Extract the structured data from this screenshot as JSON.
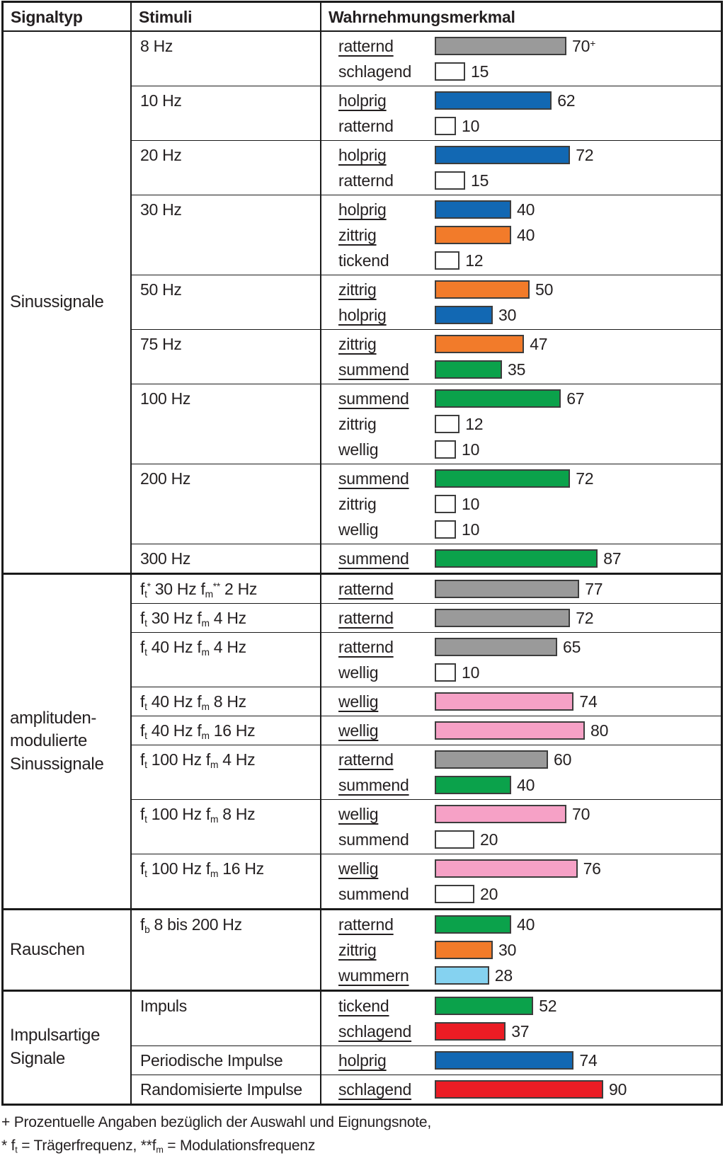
{
  "header": {
    "signaltyp": "Signaltyp",
    "stimuli": "Stimuli",
    "wahrnehmungsmerkmal": "Wahrnehmungsmerkmal"
  },
  "colors": {
    "gray": "#9a9a9a",
    "blue": "#1268b3",
    "orange": "#f27b2a",
    "green": "#0ba24b",
    "pink": "#f6a1c6",
    "lightblue": "#85d2f0",
    "red": "#eb1c24",
    "white": "#ffffff",
    "bar_border": "#3d3d3d",
    "table_line": "#1a1a1a"
  },
  "chart_data": {
    "type": "bar",
    "orientation": "horizontal",
    "title": "Wahrnehmungsmerkmal",
    "value_unit": "percent",
    "xlim": [
      0,
      100
    ],
    "legend_position": "none",
    "grid": false,
    "sections": [
      {
        "signaltyp_lines": [
          "Sinussignale"
        ],
        "rows": [
          {
            "stimulus": [
              [
                "t",
                "8 Hz"
              ]
            ],
            "bars": [
              {
                "label": "ratternd",
                "value": 70,
                "value_suffix": "+",
                "color": "gray",
                "underlined": true
              },
              {
                "label": "schlagend",
                "value": 15,
                "color": "white",
                "underlined": false
              }
            ]
          },
          {
            "stimulus": [
              [
                "t",
                "10 Hz"
              ]
            ],
            "bars": [
              {
                "label": "holprig",
                "value": 62,
                "color": "blue",
                "underlined": true
              },
              {
                "label": "ratternd",
                "value": 10,
                "color": "white",
                "underlined": false
              }
            ]
          },
          {
            "stimulus": [
              [
                "t",
                "20 Hz"
              ]
            ],
            "bars": [
              {
                "label": "holprig",
                "value": 72,
                "color": "blue",
                "underlined": true
              },
              {
                "label": "ratternd",
                "value": 15,
                "color": "white",
                "underlined": false
              }
            ]
          },
          {
            "stimulus": [
              [
                "t",
                "30 Hz"
              ]
            ],
            "bars": [
              {
                "label": "holprig",
                "value": 40,
                "color": "blue",
                "underlined": true
              },
              {
                "label": "zittrig",
                "value": 40,
                "color": "orange",
                "underlined": true
              },
              {
                "label": "tickend",
                "value": 12,
                "color": "white",
                "underlined": false
              }
            ]
          },
          {
            "stimulus": [
              [
                "t",
                "50 Hz"
              ]
            ],
            "bars": [
              {
                "label": "zittrig",
                "value": 50,
                "color": "orange",
                "underlined": true
              },
              {
                "label": "holprig",
                "value": 30,
                "color": "blue",
                "underlined": true
              }
            ]
          },
          {
            "stimulus": [
              [
                "t",
                "75 Hz"
              ]
            ],
            "bars": [
              {
                "label": "zittrig",
                "value": 47,
                "color": "orange",
                "underlined": true
              },
              {
                "label": "summend",
                "value": 35,
                "color": "green",
                "underlined": true
              }
            ]
          },
          {
            "stimulus": [
              [
                "t",
                "100 Hz"
              ]
            ],
            "bars": [
              {
                "label": "summend",
                "value": 67,
                "color": "green",
                "underlined": true
              },
              {
                "label": "zittrig",
                "value": 12,
                "color": "white",
                "underlined": false
              },
              {
                "label": "wellig",
                "value": 10,
                "color": "white",
                "underlined": false
              }
            ]
          },
          {
            "stimulus": [
              [
                "t",
                "200 Hz"
              ]
            ],
            "bars": [
              {
                "label": "summend",
                "value": 72,
                "color": "green",
                "underlined": true
              },
              {
                "label": "zittrig",
                "value": 10,
                "color": "white",
                "underlined": false
              },
              {
                "label": "wellig",
                "value": 10,
                "color": "white",
                "underlined": false
              }
            ]
          },
          {
            "stimulus": [
              [
                "t",
                "300 Hz"
              ]
            ],
            "bars": [
              {
                "label": "summend",
                "value": 87,
                "color": "green",
                "underlined": true
              }
            ]
          }
        ]
      },
      {
        "signaltyp_lines": [
          "amplituden-",
          "modulierte",
          "Sinussignale"
        ],
        "rows": [
          {
            "stimulus": [
              [
                "t",
                "f"
              ],
              [
                "sub",
                "t"
              ],
              [
                "sup",
                "*"
              ],
              [
                "t",
                " 30 Hz f"
              ],
              [
                "sub",
                "m"
              ],
              [
                "sup",
                "**"
              ],
              [
                "t",
                " 2 Hz"
              ]
            ],
            "bars": [
              {
                "label": "ratternd",
                "value": 77,
                "color": "gray",
                "underlined": true
              }
            ]
          },
          {
            "stimulus": [
              [
                "t",
                "f"
              ],
              [
                "sub",
                "t"
              ],
              [
                "t",
                " 30 Hz f"
              ],
              [
                "sub",
                "m"
              ],
              [
                "t",
                " 4 Hz"
              ]
            ],
            "bars": [
              {
                "label": "ratternd",
                "value": 72,
                "color": "gray",
                "underlined": true
              }
            ]
          },
          {
            "stimulus": [
              [
                "t",
                "f"
              ],
              [
                "sub",
                "t"
              ],
              [
                "t",
                " 40 Hz f"
              ],
              [
                "sub",
                "m"
              ],
              [
                "t",
                " 4 Hz"
              ]
            ],
            "bars": [
              {
                "label": "ratternd",
                "value": 65,
                "color": "gray",
                "underlined": true
              },
              {
                "label": "wellig",
                "value": 10,
                "color": "white",
                "underlined": false
              }
            ]
          },
          {
            "stimulus": [
              [
                "t",
                "f"
              ],
              [
                "sub",
                "t"
              ],
              [
                "t",
                " 40 Hz f"
              ],
              [
                "sub",
                "m"
              ],
              [
                "t",
                " 8 Hz"
              ]
            ],
            "bars": [
              {
                "label": "wellig",
                "value": 74,
                "color": "pink",
                "underlined": true
              }
            ]
          },
          {
            "stimulus": [
              [
                "t",
                "f"
              ],
              [
                "sub",
                "t"
              ],
              [
                "t",
                " 40 Hz f"
              ],
              [
                "sub",
                "m"
              ],
              [
                "t",
                " 16 Hz"
              ]
            ],
            "bars": [
              {
                "label": "wellig",
                "value": 80,
                "color": "pink",
                "underlined": true
              }
            ]
          },
          {
            "stimulus": [
              [
                "t",
                "f"
              ],
              [
                "sub",
                "t"
              ],
              [
                "t",
                " 100 Hz f"
              ],
              [
                "sub",
                "m"
              ],
              [
                "t",
                " 4 Hz"
              ]
            ],
            "bars": [
              {
                "label": "ratternd",
                "value": 60,
                "color": "gray",
                "underlined": true
              },
              {
                "label": "summend",
                "value": 40,
                "color": "green",
                "underlined": true
              }
            ]
          },
          {
            "stimulus": [
              [
                "t",
                "f"
              ],
              [
                "sub",
                "t"
              ],
              [
                "t",
                " 100 Hz f"
              ],
              [
                "sub",
                "m"
              ],
              [
                "t",
                " 8 Hz"
              ]
            ],
            "bars": [
              {
                "label": "wellig",
                "value": 70,
                "color": "pink",
                "underlined": true
              },
              {
                "label": "summend",
                "value": 20,
                "color": "white",
                "underlined": false
              }
            ]
          },
          {
            "stimulus": [
              [
                "t",
                "f"
              ],
              [
                "sub",
                "t"
              ],
              [
                "t",
                " 100 Hz f"
              ],
              [
                "sub",
                "m"
              ],
              [
                "t",
                " 16 Hz"
              ]
            ],
            "bars": [
              {
                "label": "wellig",
                "value": 76,
                "color": "pink",
                "underlined": true
              },
              {
                "label": "summend",
                "value": 20,
                "color": "white",
                "underlined": false
              }
            ]
          }
        ]
      },
      {
        "signaltyp_lines": [
          "Rauschen"
        ],
        "rows": [
          {
            "stimulus": [
              [
                "t",
                "f"
              ],
              [
                "sub",
                "b"
              ],
              [
                "t",
                " 8 bis 200 Hz"
              ]
            ],
            "bars": [
              {
                "label": "ratternd",
                "value": 40,
                "color": "green",
                "underlined": true
              },
              {
                "label": "zittrig",
                "value": 30,
                "color": "orange",
                "underlined": true
              },
              {
                "label": "wummern",
                "value": 28,
                "color": "lightblue",
                "underlined": true
              }
            ]
          }
        ]
      },
      {
        "signaltyp_lines": [
          "Impulsartige",
          "Signale"
        ],
        "rows": [
          {
            "stimulus": [
              [
                "t",
                "Impuls"
              ]
            ],
            "bars": [
              {
                "label": "tickend",
                "value": 52,
                "color": "green",
                "underlined": true
              },
              {
                "label": "schlagend",
                "value": 37,
                "color": "red",
                "underlined": true
              }
            ]
          },
          {
            "stimulus": [
              [
                "t",
                "Periodische Impulse"
              ]
            ],
            "bars": [
              {
                "label": "holprig",
                "value": 74,
                "color": "blue",
                "underlined": true
              }
            ]
          },
          {
            "stimulus": [
              [
                "t",
                "Randomisierte Impulse"
              ]
            ],
            "bars": [
              {
                "label": "schlagend",
                "value": 90,
                "color": "red",
                "underlined": true
              }
            ]
          }
        ]
      }
    ]
  },
  "footnotes": [
    [
      [
        "t",
        "+ Prozentuelle Angaben bezüglich der Auswahl und Eignungsnote,"
      ]
    ],
    [
      [
        "t",
        "* f"
      ],
      [
        "sub",
        "t"
      ],
      [
        "t",
        " = Trägerfrequenz, **f"
      ],
      [
        "sub",
        "m"
      ],
      [
        "t",
        " = Modulationsfrequenz"
      ]
    ]
  ]
}
